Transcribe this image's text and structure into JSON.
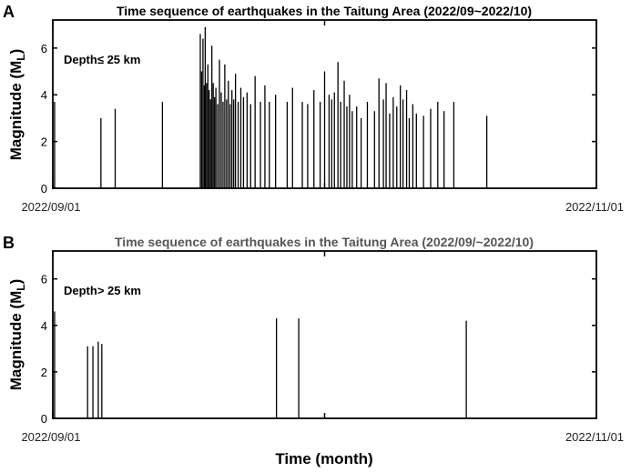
{
  "chart_data": [
    {
      "type": "bar",
      "panel_label": "A",
      "title": "Time sequence of earthquakes in the Taitung Area (2022/09~2022/10)",
      "ylabel": "Magnitude (M",
      "ylabel_sub": "L",
      "ylabel_close": ")",
      "annotation": "Depth≤ 25 km",
      "x_start_label": "2022/09/01",
      "x_end_label": "2022/11/01",
      "x_range_days": [
        0,
        61
      ],
      "ylim": [
        0,
        7.2
      ],
      "yticks": [
        0,
        2,
        4,
        6
      ],
      "events": [
        {
          "day": 0.2,
          "mag": 3.7
        },
        {
          "day": 5.4,
          "mag": 3.0
        },
        {
          "day": 7.0,
          "mag": 3.4
        },
        {
          "day": 12.3,
          "mag": 3.7
        },
        {
          "day": 16.55,
          "mag": 6.6
        },
        {
          "day": 16.7,
          "mag": 5.0
        },
        {
          "day": 16.85,
          "mag": 6.4
        },
        {
          "day": 17.0,
          "mag": 4.4
        },
        {
          "day": 17.1,
          "mag": 6.9
        },
        {
          "day": 17.25,
          "mag": 4.5
        },
        {
          "day": 17.4,
          "mag": 5.3
        },
        {
          "day": 17.55,
          "mag": 4.2
        },
        {
          "day": 17.7,
          "mag": 3.8
        },
        {
          "day": 17.85,
          "mag": 6.1
        },
        {
          "day": 18.0,
          "mag": 4.5
        },
        {
          "day": 18.15,
          "mag": 3.9
        },
        {
          "day": 18.3,
          "mag": 4.3
        },
        {
          "day": 18.5,
          "mag": 3.6
        },
        {
          "day": 18.7,
          "mag": 5.5
        },
        {
          "day": 18.9,
          "mag": 4.1
        },
        {
          "day": 19.1,
          "mag": 3.7
        },
        {
          "day": 19.3,
          "mag": 5.3
        },
        {
          "day": 19.5,
          "mag": 3.8
        },
        {
          "day": 19.7,
          "mag": 4.6
        },
        {
          "day": 19.9,
          "mag": 3.6
        },
        {
          "day": 20.1,
          "mag": 4.2
        },
        {
          "day": 20.3,
          "mag": 3.8
        },
        {
          "day": 20.5,
          "mag": 4.9
        },
        {
          "day": 20.8,
          "mag": 3.7
        },
        {
          "day": 21.1,
          "mag": 4.3
        },
        {
          "day": 21.4,
          "mag": 3.9
        },
        {
          "day": 21.8,
          "mag": 4.1
        },
        {
          "day": 22.2,
          "mag": 3.6
        },
        {
          "day": 22.7,
          "mag": 4.8
        },
        {
          "day": 23.3,
          "mag": 3.7
        },
        {
          "day": 23.8,
          "mag": 4.4
        },
        {
          "day": 24.3,
          "mag": 3.7
        },
        {
          "day": 25.0,
          "mag": 4.0
        },
        {
          "day": 26.3,
          "mag": 3.7
        },
        {
          "day": 26.9,
          "mag": 4.3
        },
        {
          "day": 28.0,
          "mag": 3.7
        },
        {
          "day": 28.6,
          "mag": 3.6
        },
        {
          "day": 29.3,
          "mag": 4.2
        },
        {
          "day": 30.0,
          "mag": 3.7
        },
        {
          "day": 30.5,
          "mag": 5.0
        },
        {
          "day": 31.0,
          "mag": 4.0
        },
        {
          "day": 31.3,
          "mag": 3.8
        },
        {
          "day": 31.6,
          "mag": 4.1
        },
        {
          "day": 32.0,
          "mag": 5.4
        },
        {
          "day": 32.3,
          "mag": 3.7
        },
        {
          "day": 32.7,
          "mag": 4.6
        },
        {
          "day": 33.0,
          "mag": 3.5
        },
        {
          "day": 33.3,
          "mag": 4.0
        },
        {
          "day": 33.6,
          "mag": 3.3
        },
        {
          "day": 34.1,
          "mag": 3.5
        },
        {
          "day": 34.6,
          "mag": 3.0
        },
        {
          "day": 35.3,
          "mag": 3.7
        },
        {
          "day": 36.1,
          "mag": 3.3
        },
        {
          "day": 36.6,
          "mag": 4.7
        },
        {
          "day": 37.1,
          "mag": 3.8
        },
        {
          "day": 37.4,
          "mag": 4.5
        },
        {
          "day": 37.8,
          "mag": 3.2
        },
        {
          "day": 38.2,
          "mag": 3.9
        },
        {
          "day": 38.6,
          "mag": 3.5
        },
        {
          "day": 39.0,
          "mag": 4.4
        },
        {
          "day": 39.3,
          "mag": 3.8
        },
        {
          "day": 39.7,
          "mag": 4.2
        },
        {
          "day": 40.0,
          "mag": 3.0
        },
        {
          "day": 40.4,
          "mag": 3.6
        },
        {
          "day": 40.8,
          "mag": 3.2
        },
        {
          "day": 41.6,
          "mag": 3.1
        },
        {
          "day": 42.4,
          "mag": 3.4
        },
        {
          "day": 43.2,
          "mag": 3.7
        },
        {
          "day": 43.9,
          "mag": 3.3
        },
        {
          "day": 45.0,
          "mag": 3.7
        },
        {
          "day": 48.7,
          "mag": 3.1
        }
      ]
    },
    {
      "type": "bar",
      "panel_label": "B",
      "title": "Time sequence of earthquakes in the Taitung Area (2022/09/~2022/10)",
      "ylabel": "Magnitude (M",
      "ylabel_sub": "L",
      "ylabel_close": ")",
      "annotation": "Depth> 25 km",
      "x_start_label": "2022/09/01",
      "x_end_label": "2022/11/01",
      "xlabel": "Time (month)",
      "x_range_days": [
        0,
        61
      ],
      "ylim": [
        0,
        7.2
      ],
      "yticks": [
        0,
        2,
        4,
        6
      ],
      "events": [
        {
          "day": 0.2,
          "mag": 4.6
        },
        {
          "day": 3.9,
          "mag": 3.1
        },
        {
          "day": 4.5,
          "mag": 3.1
        },
        {
          "day": 5.1,
          "mag": 3.3
        },
        {
          "day": 5.5,
          "mag": 3.2
        },
        {
          "day": 25.1,
          "mag": 4.3
        },
        {
          "day": 27.6,
          "mag": 4.3
        },
        {
          "day": 46.4,
          "mag": 4.2
        }
      ]
    }
  ]
}
